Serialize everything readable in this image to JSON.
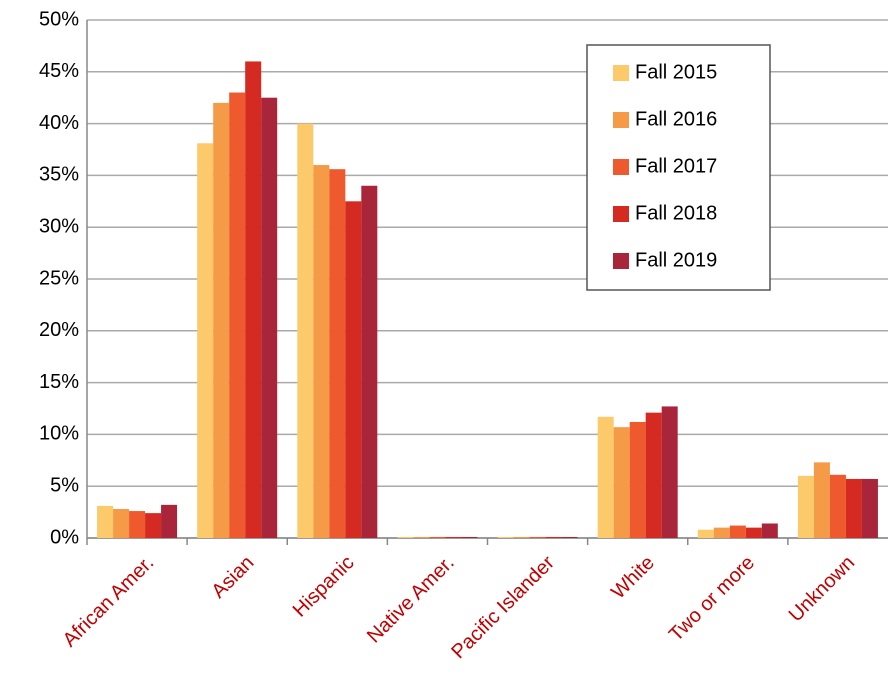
{
  "chart_data": {
    "type": "bar",
    "categories": [
      "African Amer.",
      "Asian",
      "Hispanic",
      "Native Amer.",
      "Pacific Islander",
      "White",
      "Two or more",
      "Unknown"
    ],
    "series": [
      {
        "name": "Fall 2015",
        "color": "#fcc96b",
        "values": [
          3.1,
          38.1,
          40.0,
          0.1,
          0.1,
          11.7,
          0.8,
          6.0
        ]
      },
      {
        "name": "Fall 2016",
        "color": "#f59b47",
        "values": [
          2.8,
          42.0,
          36.0,
          0.1,
          0.1,
          10.7,
          1.0,
          7.3
        ]
      },
      {
        "name": "Fall 2017",
        "color": "#ee5a2e",
        "values": [
          2.6,
          43.0,
          35.6,
          0.1,
          0.1,
          11.2,
          1.2,
          6.1
        ]
      },
      {
        "name": "Fall 2018",
        "color": "#d42a22",
        "values": [
          2.4,
          46.0,
          32.5,
          0.1,
          0.1,
          12.1,
          1.0,
          5.7
        ]
      },
      {
        "name": "Fall 2019",
        "color": "#a8253a",
        "values": [
          3.2,
          42.5,
          34.0,
          0.1,
          0.1,
          12.7,
          1.4,
          5.7
        ]
      }
    ],
    "ylim": [
      0,
      50
    ],
    "yticks": [
      {
        "value": 0,
        "label": "0%"
      },
      {
        "value": 5,
        "label": "5%"
      },
      {
        "value": 10,
        "label": "10%"
      },
      {
        "value": 15,
        "label": "15%"
      },
      {
        "value": 20,
        "label": "20%"
      },
      {
        "value": 25,
        "label": "25%"
      },
      {
        "value": 30,
        "label": "30%"
      },
      {
        "value": 35,
        "label": "35%"
      },
      {
        "value": 40,
        "label": "40%"
      },
      {
        "value": 45,
        "label": "45%"
      },
      {
        "value": 50,
        "label": "50%"
      }
    ],
    "grid": true,
    "legend": "top-right"
  }
}
